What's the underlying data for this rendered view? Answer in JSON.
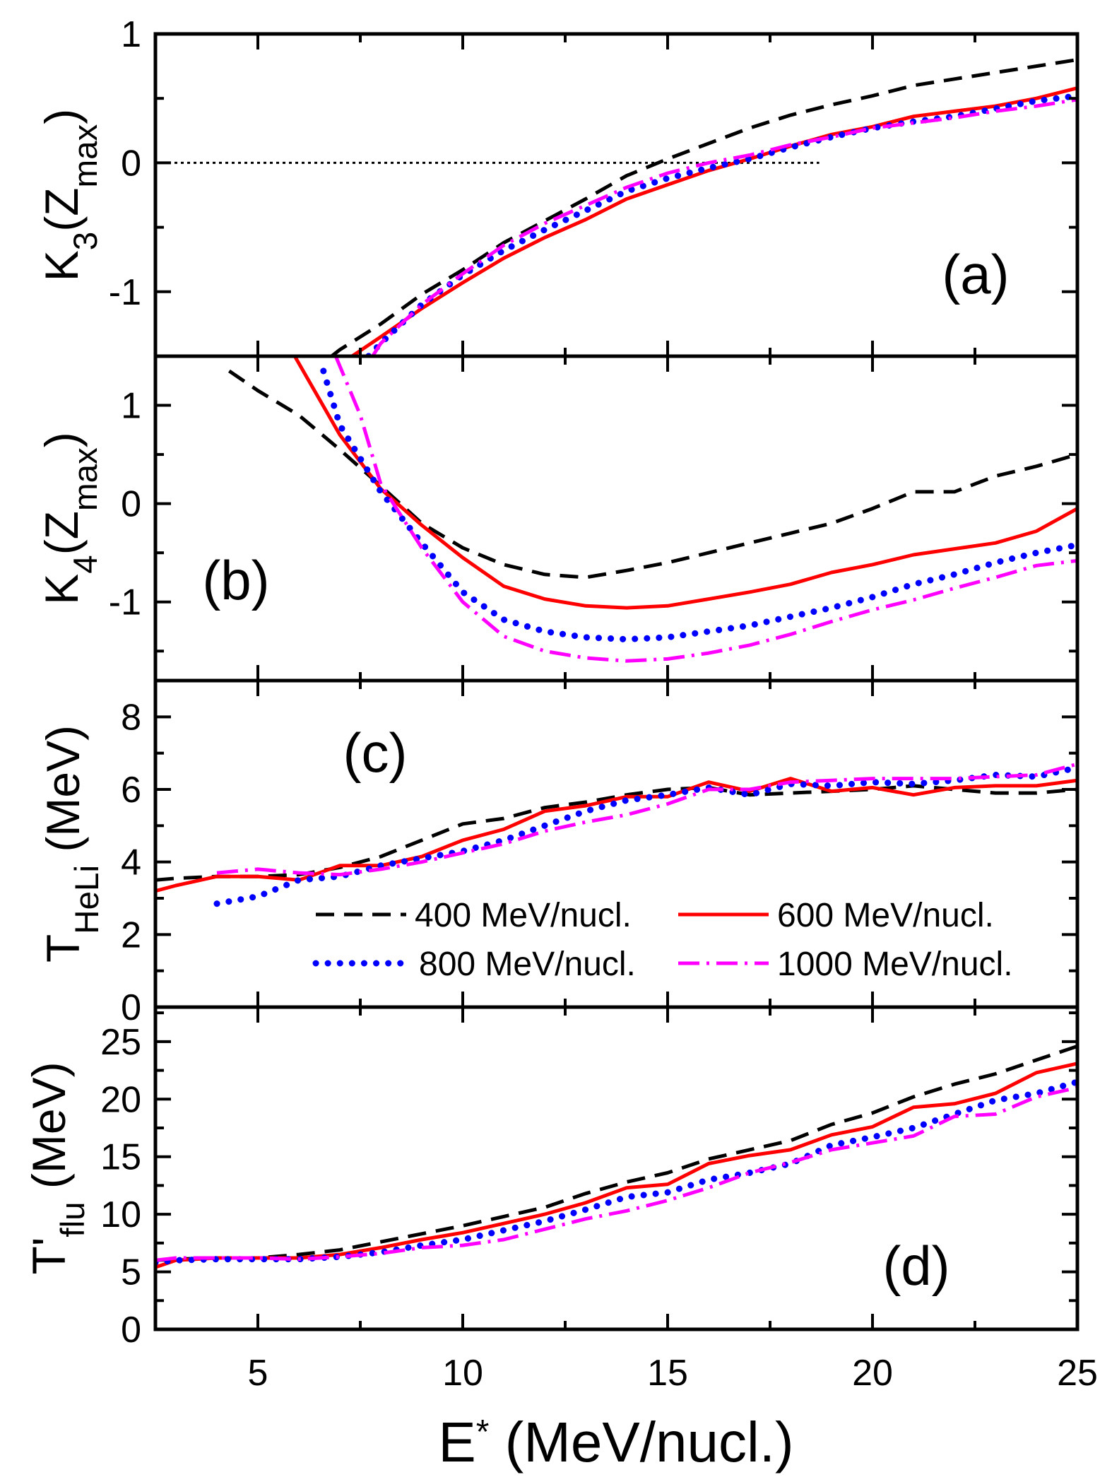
{
  "chart_data": [
    {
      "type": "line",
      "panel_label": "(a)",
      "ylabel": [
        {
          "t": "K"
        },
        {
          "t": "3",
          "sub": true
        },
        {
          "t": "(Z"
        },
        {
          "t": "max",
          "sub": true
        },
        {
          "t": ")"
        }
      ],
      "ylim": [
        -1.5,
        1
      ],
      "yticks": [
        -1,
        0,
        1
      ],
      "yminor": [
        -0.5,
        0.5
      ],
      "reference_line": {
        "y": 0,
        "x": [
          2.5,
          18.7
        ],
        "style": "dotted"
      },
      "series": [
        {
          "name": "400 MeV/nucl.",
          "x": [
            6.8,
            7,
            8,
            9,
            10,
            11,
            12,
            13,
            14,
            15,
            16,
            17,
            18,
            19,
            20,
            21,
            22,
            23,
            24,
            25
          ],
          "y": [
            -1.5,
            -1.45,
            -1.25,
            -1.02,
            -0.83,
            -0.62,
            -0.45,
            -0.28,
            -0.1,
            0.03,
            0.15,
            0.27,
            0.37,
            0.45,
            0.52,
            0.6,
            0.65,
            0.7,
            0.75,
            0.8
          ]
        },
        {
          "name": "600 MeV/nucl.",
          "x": [
            7.3,
            8,
            9,
            10,
            11,
            12,
            13,
            14,
            15,
            16,
            17,
            18,
            19,
            20,
            21,
            22,
            23,
            24,
            25
          ],
          "y": [
            -1.5,
            -1.35,
            -1.13,
            -0.93,
            -0.74,
            -0.58,
            -0.44,
            -0.28,
            -0.17,
            -0.06,
            0.03,
            0.13,
            0.22,
            0.28,
            0.36,
            0.4,
            0.44,
            0.5,
            0.58
          ]
        },
        {
          "name": "800 MeV/nucl.",
          "x": [
            7.7,
            8,
            9,
            10,
            11,
            12,
            13,
            14,
            15,
            16,
            17,
            18,
            19,
            20,
            21,
            22,
            23,
            24,
            25
          ],
          "y": [
            -1.5,
            -1.4,
            -1.1,
            -0.87,
            -0.68,
            -0.52,
            -0.37,
            -0.22,
            -0.12,
            -0.04,
            0.03,
            0.12,
            0.2,
            0.27,
            0.32,
            0.36,
            0.42,
            0.48,
            0.52
          ]
        },
        {
          "name": "1000 MeV/nucl.",
          "x": [
            7.8,
            8,
            9,
            10,
            11,
            12,
            13,
            14,
            15,
            16,
            17,
            18,
            19,
            20,
            21,
            22,
            23,
            24,
            25
          ],
          "y": [
            -1.5,
            -1.4,
            -1.1,
            -0.86,
            -0.64,
            -0.47,
            -0.33,
            -0.19,
            -0.08,
            0.0,
            0.06,
            0.14,
            0.2,
            0.27,
            0.31,
            0.35,
            0.4,
            0.44,
            0.49
          ]
        }
      ]
    },
    {
      "type": "line",
      "panel_label": "(b)",
      "ylabel": [
        {
          "t": "K"
        },
        {
          "t": "4",
          "sub": true
        },
        {
          "t": "(Z"
        },
        {
          "t": "max",
          "sub": true
        },
        {
          "t": ")"
        }
      ],
      "ylim": [
        -1.8,
        1.5
      ],
      "yticks": [
        -1,
        0,
        1
      ],
      "yminor": [
        -1.5,
        -0.5,
        0.5
      ],
      "series": [
        {
          "name": "400 MeV/nucl.",
          "x": [
            4.3,
            5,
            6,
            7,
            8,
            9,
            10,
            11,
            12,
            13,
            14,
            15,
            16,
            17,
            18,
            19,
            20,
            21,
            22,
            23,
            24,
            25
          ],
          "y": [
            1.35,
            1.15,
            0.9,
            0.55,
            0.18,
            -0.2,
            -0.45,
            -0.62,
            -0.72,
            -0.75,
            -0.68,
            -0.6,
            -0.5,
            -0.4,
            -0.3,
            -0.2,
            -0.05,
            0.12,
            0.12,
            0.28,
            0.38,
            0.5
          ]
        },
        {
          "name": "600 MeV/nucl.",
          "x": [
            5.9,
            7,
            8,
            9,
            10,
            11,
            12,
            13,
            14,
            15,
            16,
            17,
            18,
            19,
            20,
            21,
            22,
            23,
            24,
            25
          ],
          "y": [
            1.5,
            0.7,
            0.15,
            -0.22,
            -0.55,
            -0.84,
            -0.97,
            -1.04,
            -1.06,
            -1.04,
            -0.97,
            -0.9,
            -0.82,
            -0.7,
            -0.62,
            -0.52,
            -0.46,
            -0.4,
            -0.28,
            -0.05
          ]
        },
        {
          "name": "800 MeV/nucl.",
          "x": [
            6.6,
            7,
            8,
            9,
            10,
            11,
            12,
            13,
            14,
            15,
            16,
            17,
            18,
            19,
            20,
            21,
            22,
            23,
            24,
            25
          ],
          "y": [
            1.35,
            0.8,
            0.12,
            -0.4,
            -0.9,
            -1.18,
            -1.3,
            -1.36,
            -1.38,
            -1.36,
            -1.3,
            -1.24,
            -1.15,
            -1.06,
            -0.95,
            -0.82,
            -0.72,
            -0.6,
            -0.5,
            -0.42
          ]
        },
        {
          "name": "1000 MeV/nucl.",
          "x": [
            6.9,
            7.5,
            8,
            9,
            10,
            11,
            12,
            13,
            14,
            15,
            16,
            17,
            18,
            19,
            20,
            21,
            22,
            23,
            24,
            25
          ],
          "y": [
            1.5,
            0.9,
            0.2,
            -0.45,
            -1.0,
            -1.35,
            -1.5,
            -1.57,
            -1.6,
            -1.58,
            -1.52,
            -1.44,
            -1.33,
            -1.2,
            -1.08,
            -0.98,
            -0.86,
            -0.75,
            -0.63,
            -0.58
          ]
        }
      ]
    },
    {
      "type": "line",
      "panel_label": "(c)",
      "ylabel": [
        {
          "t": "T"
        },
        {
          "t": "HeLi",
          "sub": true
        },
        {
          "t": " (MeV)"
        }
      ],
      "ylim": [
        0,
        9
      ],
      "yticks": [
        0,
        2,
        4,
        6,
        8
      ],
      "yminor": [
        1,
        3,
        5,
        7
      ],
      "series": [
        {
          "name": "400 MeV/nucl.",
          "x": [
            2.5,
            3,
            4,
            5,
            6,
            7,
            8,
            9,
            10,
            11,
            12,
            13,
            14,
            15,
            16,
            17,
            18,
            19,
            20,
            21,
            22,
            23,
            24,
            25
          ],
          "y": [
            3.5,
            3.55,
            3.6,
            3.6,
            3.65,
            3.85,
            4.15,
            4.6,
            5.05,
            5.2,
            5.5,
            5.65,
            5.85,
            6.0,
            6.05,
            5.85,
            5.9,
            5.95,
            6.0,
            6.1,
            6.0,
            5.9,
            5.9,
            6.0
          ]
        },
        {
          "name": "600 MeV/nucl.",
          "x": [
            2.5,
            3,
            4,
            5,
            6,
            7,
            8,
            9,
            10,
            11,
            12,
            13,
            14,
            15,
            16,
            17,
            18,
            19,
            20,
            21,
            22,
            23,
            24,
            25
          ],
          "y": [
            3.2,
            3.35,
            3.6,
            3.6,
            3.5,
            3.9,
            3.9,
            4.15,
            4.6,
            4.9,
            5.4,
            5.55,
            5.8,
            5.8,
            6.2,
            5.95,
            6.3,
            5.95,
            6.05,
            5.85,
            6.05,
            6.1,
            6.1,
            6.25
          ]
        },
        {
          "name": "800 MeV/nucl.",
          "x": [
            4,
            5,
            6,
            7,
            8,
            9,
            10,
            11,
            12,
            13,
            14,
            15,
            16,
            17,
            18,
            19,
            20,
            21,
            22,
            23,
            24,
            25
          ],
          "y": [
            2.85,
            3.05,
            3.5,
            3.6,
            3.9,
            4.1,
            4.3,
            4.6,
            5.0,
            5.4,
            5.7,
            5.85,
            6.05,
            5.85,
            6.15,
            6.1,
            6.2,
            6.15,
            6.25,
            6.4,
            6.35,
            6.6
          ]
        },
        {
          "name": "1000 MeV/nucl.",
          "x": [
            4,
            5,
            6,
            7,
            8,
            9,
            10,
            11,
            12,
            13,
            14,
            15,
            16,
            17,
            18,
            19,
            20,
            21,
            22,
            23,
            24,
            25
          ],
          "y": [
            3.7,
            3.8,
            3.7,
            3.65,
            3.8,
            4.0,
            4.25,
            4.5,
            4.85,
            5.1,
            5.3,
            5.6,
            6.0,
            6.0,
            6.2,
            6.25,
            6.3,
            6.3,
            6.3,
            6.35,
            6.4,
            6.7
          ]
        }
      ]
    },
    {
      "type": "line",
      "panel_label": "(d)",
      "ylabel": [
        {
          "t": "T'"
        },
        {
          "t": "flu",
          "sub": true
        },
        {
          "t": " (MeV)"
        }
      ],
      "ylim": [
        0,
        28
      ],
      "yticks": [
        0,
        5,
        10,
        15,
        20,
        25
      ],
      "yminor": [
        2.5,
        7.5,
        12.5,
        17.5,
        22.5,
        27.5
      ],
      "xlabel": [
        {
          "t": "E"
        },
        {
          "t": "*",
          "sup": true
        },
        {
          "t": " (MeV/nucl.)"
        }
      ],
      "series": [
        {
          "name": "400 MeV/nucl.",
          "x": [
            2.5,
            3,
            4,
            5,
            6,
            7,
            8,
            9,
            10,
            11,
            12,
            13,
            14,
            15,
            16,
            17,
            18,
            19,
            20,
            21,
            22,
            23,
            24,
            25
          ],
          "y": [
            6.0,
            6.1,
            6.2,
            6.2,
            6.5,
            6.9,
            7.6,
            8.3,
            9.0,
            9.8,
            10.6,
            11.8,
            12.8,
            13.6,
            14.8,
            15.6,
            16.4,
            17.8,
            18.8,
            20.2,
            21.3,
            22.2,
            23.4,
            24.6
          ]
        },
        {
          "name": "600 MeV/nucl.",
          "x": [
            2.5,
            3,
            4,
            5,
            6,
            7,
            8,
            9,
            10,
            11,
            12,
            13,
            14,
            15,
            16,
            17,
            18,
            19,
            20,
            21,
            22,
            23,
            24,
            25
          ],
          "y": [
            5.4,
            6.0,
            6.2,
            6.2,
            6.2,
            6.5,
            7.1,
            7.8,
            8.4,
            9.2,
            10.0,
            11.0,
            12.3,
            12.6,
            14.4,
            15.1,
            15.6,
            16.9,
            17.6,
            19.3,
            19.6,
            20.5,
            22.3,
            23.1
          ]
        },
        {
          "name": "800 MeV/nucl.",
          "x": [
            2.5,
            3,
            4,
            5,
            6,
            7,
            8,
            9,
            10,
            11,
            12,
            13,
            14,
            15,
            16,
            17,
            18,
            19,
            20,
            21,
            22,
            23,
            24,
            25
          ],
          "y": [
            5.8,
            6.0,
            6.1,
            6.1,
            6.1,
            6.3,
            6.7,
            7.3,
            7.8,
            8.6,
            9.4,
            10.4,
            11.5,
            11.9,
            13.0,
            13.6,
            14.4,
            16.0,
            16.7,
            17.5,
            18.7,
            19.9,
            20.5,
            21.5
          ]
        },
        {
          "name": "1000 MeV/nucl.",
          "x": [
            2.5,
            3,
            4,
            5,
            6,
            7,
            8,
            9,
            10,
            11,
            12,
            13,
            14,
            15,
            16,
            17,
            18,
            19,
            20,
            21,
            22,
            23,
            24,
            25
          ],
          "y": [
            6.0,
            6.2,
            6.2,
            6.2,
            6.1,
            6.3,
            6.6,
            7.1,
            7.3,
            7.8,
            8.7,
            9.6,
            10.3,
            11.2,
            12.3,
            13.6,
            14.5,
            15.6,
            16.2,
            16.8,
            18.5,
            18.7,
            20.2,
            21.0
          ]
        }
      ]
    }
  ],
  "xaxis": {
    "xlim": [
      2.5,
      25
    ],
    "xticks": [
      5,
      10,
      15,
      20,
      25
    ],
    "xminor": [
      7.5,
      12.5,
      17.5,
      22.5
    ]
  },
  "legend": {
    "placement": "panel-c-bottom-right",
    "entries": [
      "400 MeV/nucl.",
      "600 MeV/nucl.",
      "800 MeV/nucl.",
      "1000 MeV/nucl."
    ]
  },
  "styles": [
    {
      "color": "#000000",
      "dash": "dashed"
    },
    {
      "color": "#ff0000",
      "dash": "solid"
    },
    {
      "color": "#0000ff",
      "dash": "dotted"
    },
    {
      "color": "#ff00ff",
      "dash": "dash-dot"
    }
  ]
}
